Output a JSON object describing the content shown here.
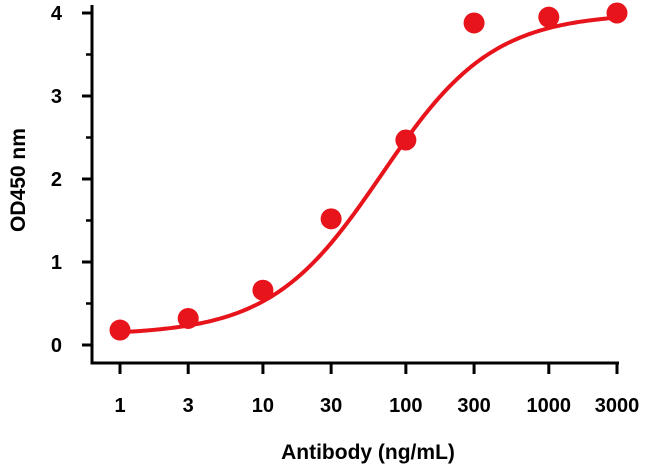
{
  "chart_data": {
    "type": "line",
    "title": "",
    "xlabel": "Antibody (ng/mL)",
    "ylabel": "OD450 nm",
    "x_scale": "log",
    "x_ticks": [
      1,
      3,
      10,
      30,
      100,
      300,
      1000,
      3000
    ],
    "x_tick_labels": [
      "1",
      "3",
      "10",
      "30",
      "100",
      "300",
      "1000",
      "3000"
    ],
    "y_ticks": [
      0,
      1,
      2,
      3,
      4
    ],
    "y_tick_labels": [
      "0",
      "1",
      "2",
      "3",
      "4"
    ],
    "xlim": [
      1,
      3000
    ],
    "ylim": [
      0,
      4
    ],
    "grid": false,
    "legend": "none",
    "series": [
      {
        "color": "#e8141c",
        "points": [
          {
            "x": 1,
            "y": 0.18
          },
          {
            "x": 3,
            "y": 0.32
          },
          {
            "x": 10,
            "y": 0.66
          },
          {
            "x": 30,
            "y": 1.52
          },
          {
            "x": 100,
            "y": 2.47
          },
          {
            "x": 300,
            "y": 3.88
          },
          {
            "x": 1000,
            "y": 3.95
          },
          {
            "x": 3000,
            "y": 4.0
          }
        ],
        "fit_curve": {
          "model": "4PL",
          "bottom": 0.12,
          "top": 4.0,
          "ec50": 68,
          "hill": 1.12
        }
      }
    ]
  }
}
